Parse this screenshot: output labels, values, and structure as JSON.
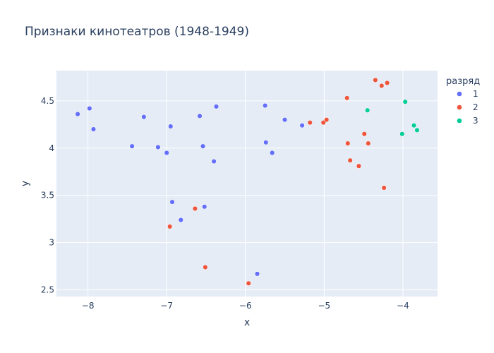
{
  "chart_data": {
    "type": "scatter",
    "title": "Признаки кинотеатров (1948-1949)",
    "xlabel": "x",
    "ylabel": "y",
    "xlim": [
      -8.4,
      -3.56
    ],
    "ylim": [
      2.43,
      4.82
    ],
    "xticks": [
      -8,
      -7,
      -6,
      -5,
      -4
    ],
    "xtick_labels": [
      "−8",
      "−7",
      "−6",
      "−5",
      "−4"
    ],
    "yticks": [
      2.5,
      3,
      3.5,
      4,
      4.5
    ],
    "ytick_labels": [
      "2.5",
      "3",
      "3.5",
      "4",
      "4.5"
    ],
    "grid": true,
    "legend_title": "разряд",
    "legend_position": "right",
    "series": [
      {
        "name": "1",
        "color": "#636efa",
        "points": [
          [
            -8.13,
            4.36
          ],
          [
            -7.98,
            4.42
          ],
          [
            -7.93,
            4.2
          ],
          [
            -7.44,
            4.02
          ],
          [
            -7.29,
            4.33
          ],
          [
            -7.11,
            4.01
          ],
          [
            -7.0,
            3.95
          ],
          [
            -6.95,
            4.23
          ],
          [
            -6.93,
            3.43
          ],
          [
            -6.82,
            3.24
          ],
          [
            -6.58,
            4.34
          ],
          [
            -6.54,
            4.02
          ],
          [
            -6.52,
            3.38
          ],
          [
            -6.4,
            3.86
          ],
          [
            -6.37,
            4.44
          ],
          [
            -5.85,
            2.67
          ],
          [
            -5.75,
            4.45
          ],
          [
            -5.74,
            4.06
          ],
          [
            -5.66,
            3.95
          ],
          [
            -5.5,
            4.3
          ],
          [
            -5.28,
            4.24
          ]
        ]
      },
      {
        "name": "2",
        "color": "#ef553b",
        "points": [
          [
            -6.96,
            3.17
          ],
          [
            -6.64,
            3.36
          ],
          [
            -6.51,
            2.74
          ],
          [
            -5.96,
            2.57
          ],
          [
            -5.18,
            4.27
          ],
          [
            -5.01,
            4.27
          ],
          [
            -4.97,
            4.3
          ],
          [
            -4.71,
            4.53
          ],
          [
            -4.7,
            4.05
          ],
          [
            -4.67,
            3.87
          ],
          [
            -4.56,
            3.81
          ],
          [
            -4.49,
            4.15
          ],
          [
            -4.44,
            4.05
          ],
          [
            -4.35,
            4.72
          ],
          [
            -4.27,
            4.66
          ],
          [
            -4.24,
            3.58
          ],
          [
            -4.2,
            4.69
          ]
        ]
      },
      {
        "name": "3",
        "color": "#00cc96",
        "points": [
          [
            -4.45,
            4.4
          ],
          [
            -4.01,
            4.15
          ],
          [
            -3.97,
            4.49
          ],
          [
            -3.86,
            4.24
          ],
          [
            -3.82,
            4.19
          ]
        ]
      }
    ]
  }
}
